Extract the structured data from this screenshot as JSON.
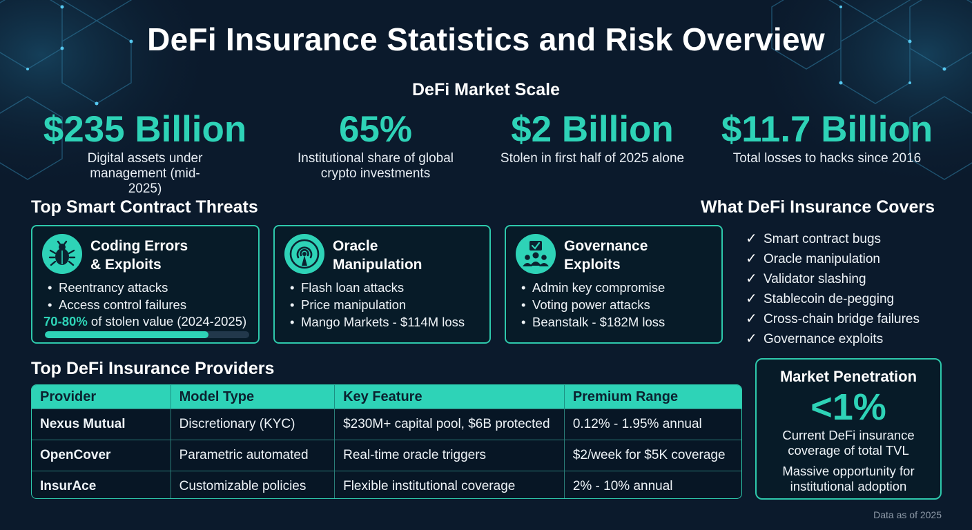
{
  "title": "DeFi Insurance Statistics and Risk Overview",
  "market_scale": {
    "heading": "DeFi Market Scale",
    "stats": [
      {
        "value": "$235 Billion",
        "label": "Digital assets under management (mid-2025)"
      },
      {
        "value": "65%",
        "label": "Institutional share of global crypto investments"
      },
      {
        "value": "$2 Billion",
        "label": "Stolen in first half of 2025 alone"
      },
      {
        "value": "$11.7 Billion",
        "label": "Total losses to hacks since 2016"
      }
    ]
  },
  "threats": {
    "heading": "Top Smart Contract Threats",
    "cards": [
      {
        "icon": "bug-icon",
        "title_line1": "Coding Errors",
        "title_line2": "& Exploits",
        "bullets": [
          "Reentrancy attacks",
          "Access control failures"
        ],
        "stolen_highlight": "70-80%",
        "stolen_text": " of stolen value (2024-2025)",
        "stolen_share": 0.8
      },
      {
        "icon": "oracle-signal-icon",
        "title_line1": "Oracle",
        "title_line2": "Manipulation",
        "bullets": [
          "Flash loan attacks",
          "Price manipulation",
          "Mango Markets - $114M loss"
        ]
      },
      {
        "icon": "governance-group-icon",
        "title_line1": "Governance",
        "title_line2": "Exploits",
        "bullets": [
          "Admin key compromise",
          "Voting power attacks",
          "Beanstalk - $182M loss"
        ]
      }
    ]
  },
  "covers": {
    "heading": "What DeFi Insurance Covers",
    "items": [
      "Smart contract bugs",
      "Oracle manipulation",
      "Validator slashing",
      "Stablecoin de-pegging",
      "Cross-chain bridge failures",
      "Governance exploits"
    ]
  },
  "providers": {
    "heading": "Top DeFi Insurance Providers",
    "columns": [
      "Provider",
      "Model Type",
      "Key Feature",
      "Premium Range"
    ],
    "rows": [
      [
        "Nexus Mutual",
        "Discretionary (KYC)",
        "$230M+ capital pool, $6B protected",
        "0.12% - 1.95% annual"
      ],
      [
        "OpenCover",
        "Parametric automated",
        "Real-time oracle triggers",
        "$2/week for $5K coverage"
      ],
      [
        "InsurAce",
        "Customizable policies",
        "Flexible institutional coverage",
        "2% - 10% annual"
      ]
    ]
  },
  "penetration": {
    "heading": "Market Penetration",
    "value": "<1%",
    "label": "Current DeFi insurance coverage of total TVL",
    "note": "Massive opportunity for institutional adoption"
  },
  "footnote": "Data as of 2025",
  "colors": {
    "background": "#0b1a2c",
    "accent": "#2ed3b7",
    "text": "#ffffff"
  }
}
